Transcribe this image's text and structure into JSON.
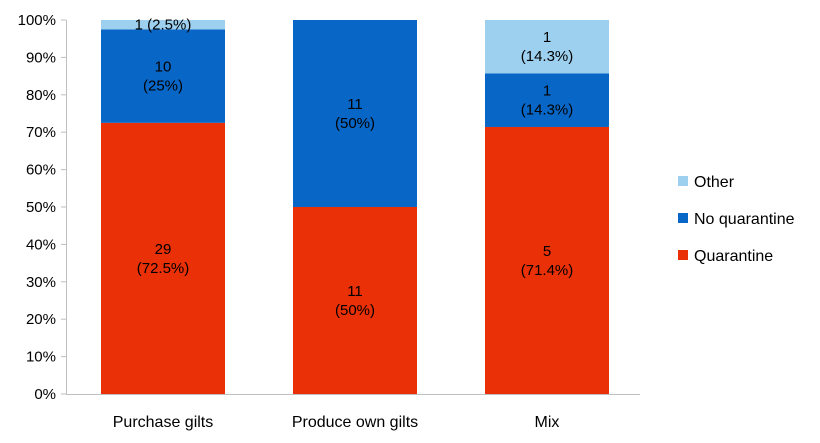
{
  "chart_data": {
    "type": "bar",
    "stacked": true,
    "percent_stacked": true,
    "categories": [
      "Purchase gilts",
      "Produce own gilts",
      "Mix"
    ],
    "series": [
      {
        "name": "Quarantine",
        "color": "#ea3007",
        "values": [
          72.5,
          50,
          71.4
        ],
        "labels": [
          "29\n(72.5%)",
          "11\n(50%)",
          "5\n(71.4%)"
        ]
      },
      {
        "name": "No quarantine",
        "color": "#0866c6",
        "values": [
          25,
          50,
          14.3
        ],
        "labels": [
          "10\n(25%)",
          "11\n(50%)",
          "1\n(14.3%)"
        ]
      },
      {
        "name": "Other",
        "color": "#9dd0ef",
        "values": [
          2.5,
          0,
          14.3
        ],
        "labels": [
          "1 (2.5%)",
          "",
          "1\n(14.3%)"
        ]
      }
    ],
    "yticks": [
      "0%",
      "10%",
      "20%",
      "30%",
      "40%",
      "50%",
      "60%",
      "70%",
      "80%",
      "90%",
      "100%"
    ],
    "ylim": [
      0,
      100
    ],
    "grid": false,
    "legend": {
      "position": "right",
      "order": [
        "Other",
        "No quarantine",
        "Quarantine"
      ]
    }
  }
}
